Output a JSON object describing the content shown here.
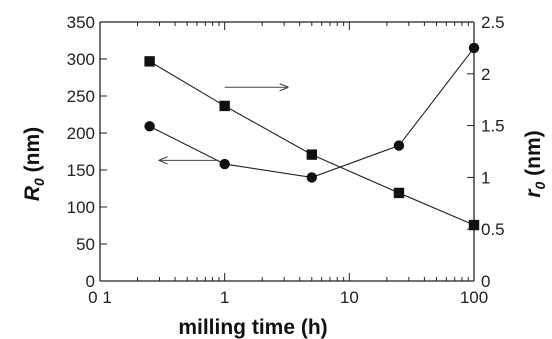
{
  "chart_data": {
    "type": "scatter",
    "x_scale": "log",
    "xlim": [
      0.1,
      100
    ],
    "ylim_left": [
      0,
      350
    ],
    "ylim_right": [
      0,
      2.5
    ],
    "grid": false,
    "xlabel": "milling time (h)",
    "ylabel_left": "R",
    "ylabel_left_sub": "0",
    "ylabel_left_unit": " (nm)",
    "ylabel_right": "r",
    "ylabel_right_sub": "0",
    "ylabel_right_unit": " (nm)",
    "x_tick_labels": [
      {
        "value": 0.1,
        "label": "0 1"
      },
      {
        "value": 1,
        "label": "1"
      },
      {
        "value": 10,
        "label": "10"
      },
      {
        "value": 100,
        "label": "100"
      }
    ],
    "y_left_ticks": [
      0,
      50,
      100,
      150,
      200,
      250,
      300,
      350
    ],
    "y_right_ticks": [
      {
        "value": 0,
        "label": "0"
      },
      {
        "value": 0.5,
        "label": "0.5"
      },
      {
        "value": 1,
        "label": "1"
      },
      {
        "value": 1.5,
        "label": "1.5"
      },
      {
        "value": 2,
        "label": "2"
      },
      {
        "value": 2.5,
        "label": "2.5"
      }
    ],
    "series": [
      {
        "marker": "circle",
        "axis": "left",
        "x": [
          0.25,
          1,
          5,
          25,
          100
        ],
        "y": [
          209,
          158,
          140,
          183,
          315
        ]
      },
      {
        "marker": "square",
        "axis": "right",
        "x": [
          0.25,
          1,
          5,
          25,
          100
        ],
        "y": [
          2.12,
          1.69,
          1.22,
          0.85,
          0.54
        ]
      }
    ],
    "annotations": [
      {
        "type": "arrow",
        "direction": "left",
        "axis": "left",
        "x_from": 0.9,
        "x_to": 0.3,
        "y": 163
      },
      {
        "type": "arrow",
        "direction": "right",
        "axis": "right",
        "x_from": 1.0,
        "x_to": 3.2,
        "y": 1.87
      }
    ]
  }
}
